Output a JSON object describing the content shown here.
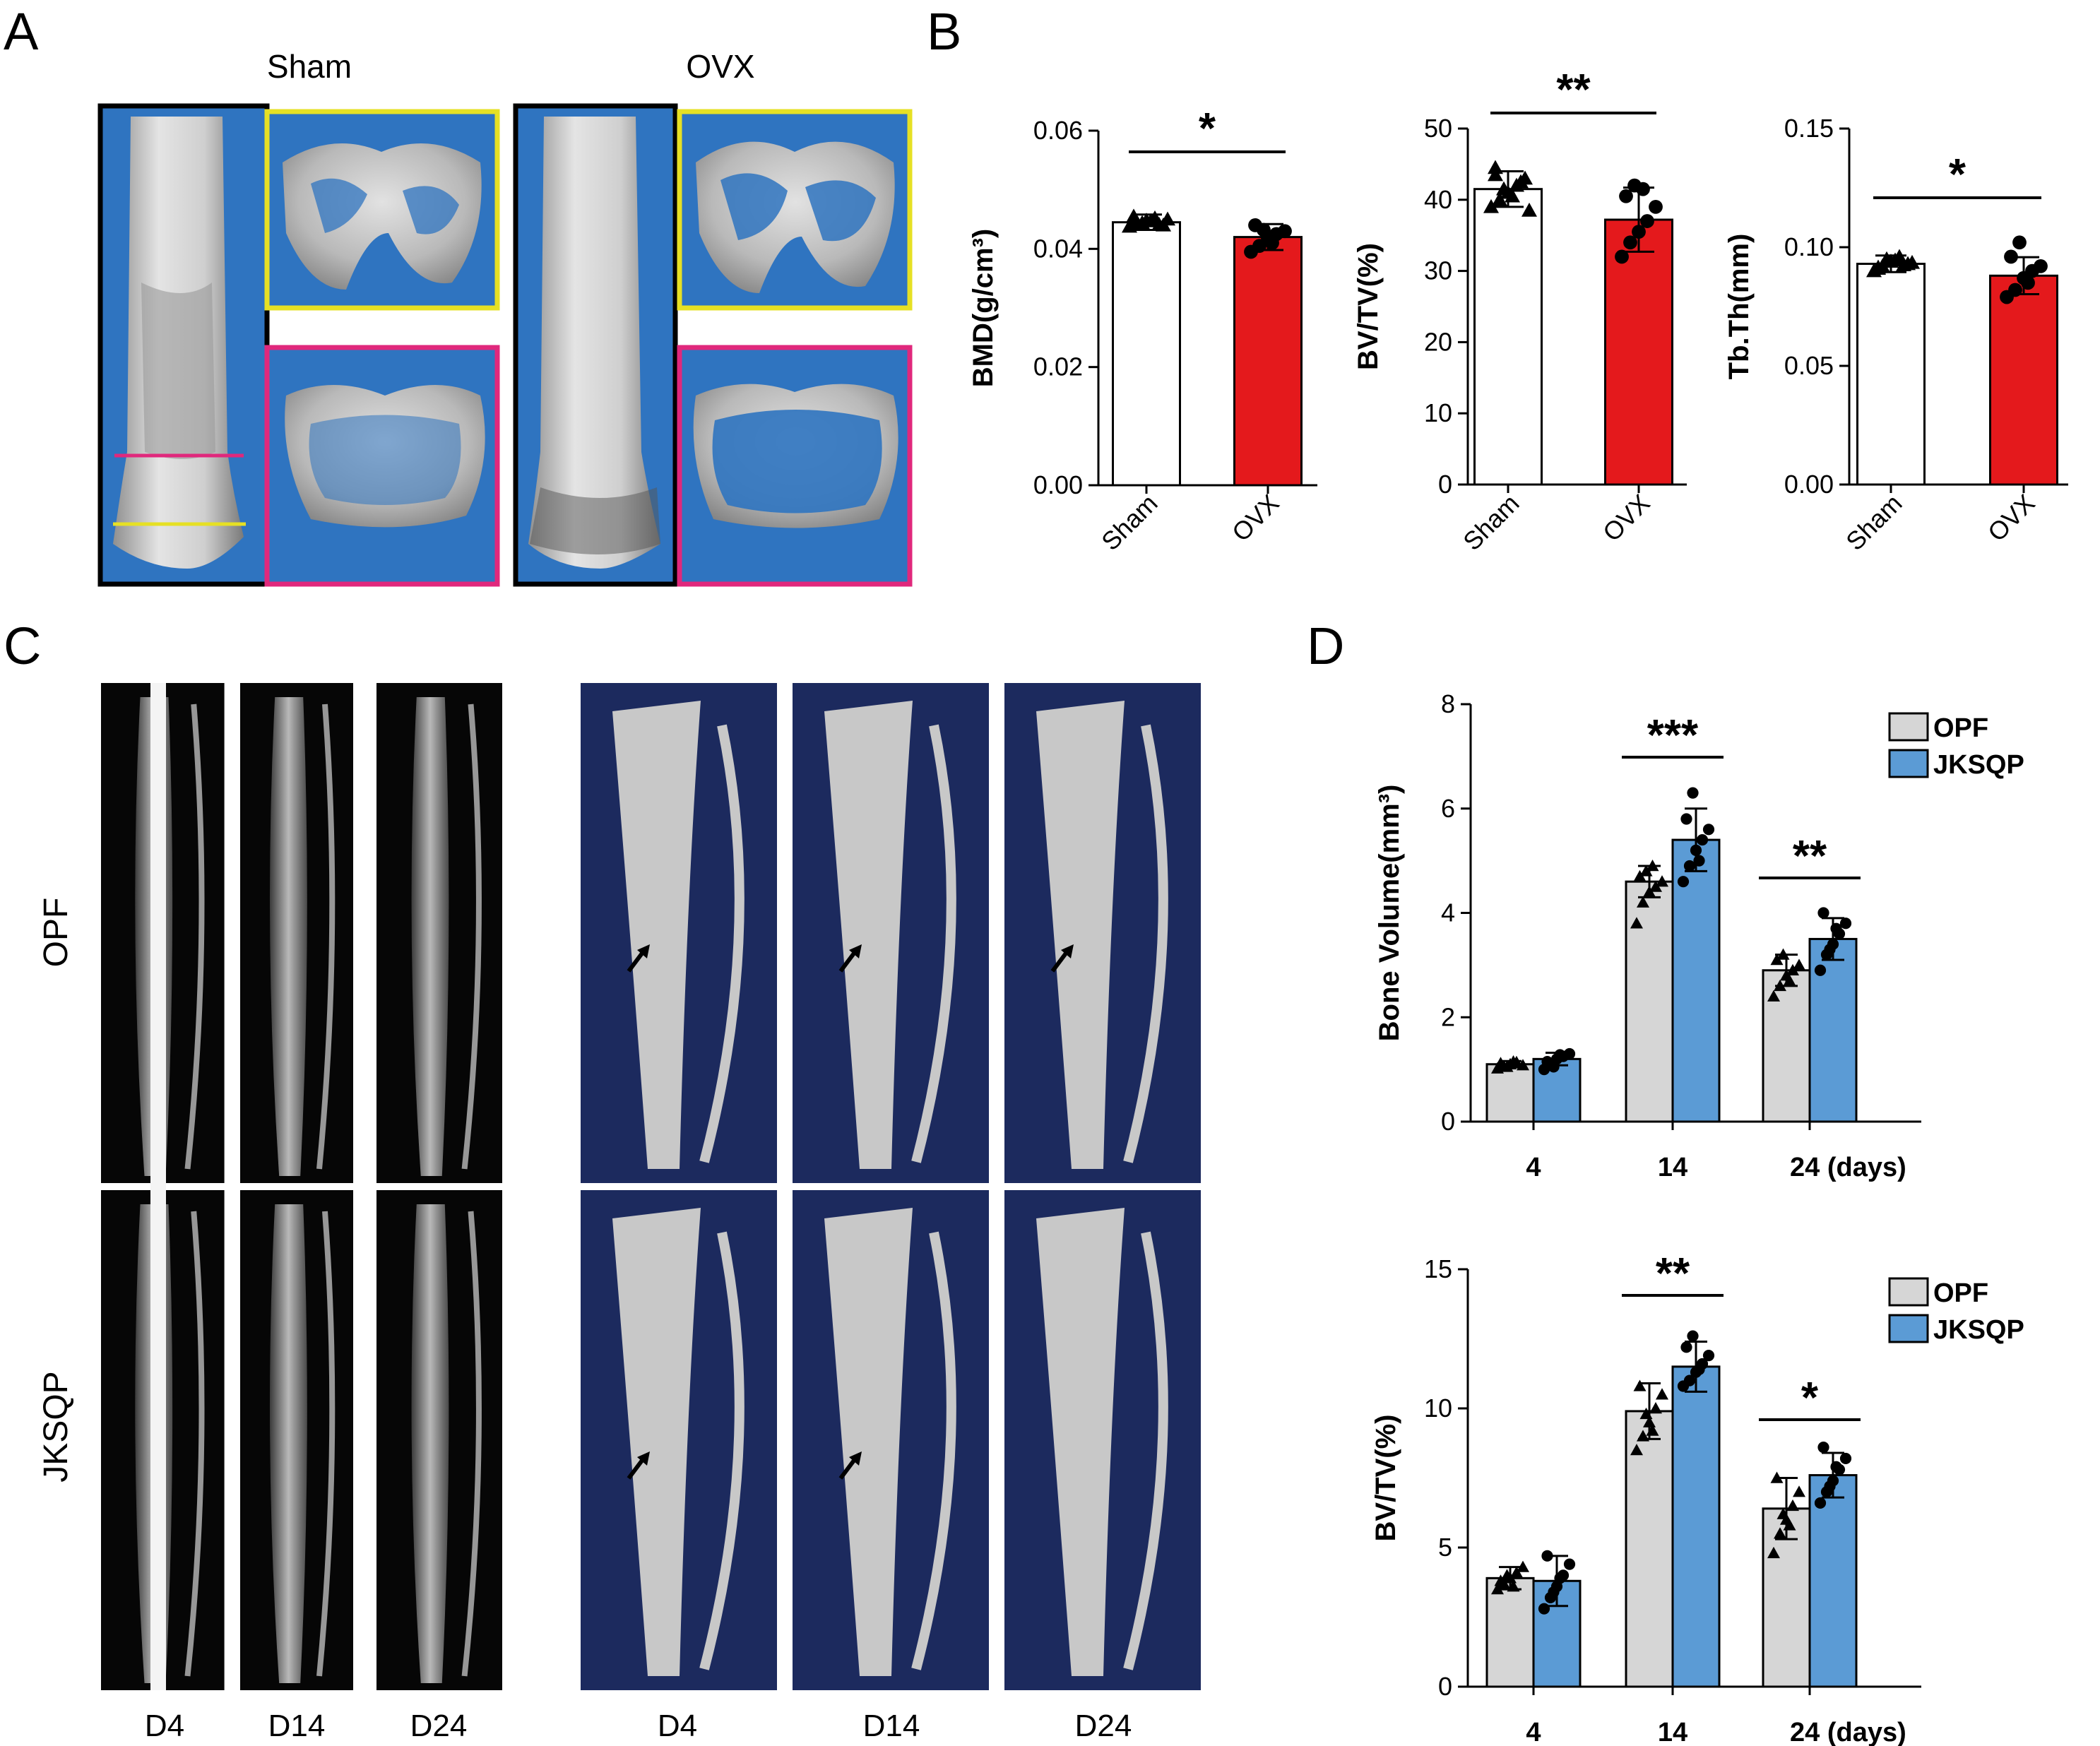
{
  "panels": {
    "A": {
      "letter": "A",
      "headers": [
        "Sham",
        "OVX"
      ]
    },
    "B": {
      "letter": "B"
    },
    "C": {
      "letter": "C",
      "row_labels": [
        "OPF",
        "JKSQP"
      ],
      "day_labels_left": [
        "D4",
        "D14",
        "D24"
      ],
      "day_labels_right": [
        "D4",
        "D14",
        "D24"
      ]
    },
    "D": {
      "letter": "D"
    }
  },
  "colors": {
    "sham_bar": "#ffffff",
    "ovx_bar": "#e4191c",
    "opf_bar": "#d6d6d6",
    "jksqp_bar": "#5b9bd5",
    "ct_background": "#2f74c0",
    "ct_frame_black": "#000000",
    "ct_frame_yellow": "#e6e024",
    "ct_frame_magenta": "#e0287c",
    "xray_background": "#060606",
    "render_background": "#1c2a5e",
    "bone": "#c8c8c8"
  },
  "chart_data": [
    {
      "id": "bmd",
      "type": "bar",
      "categories": [
        "Sham",
        "OVX"
      ],
      "values": [
        0.0445,
        0.042
      ],
      "errors": [
        0.0013,
        0.0022
      ],
      "points": [
        [
          0.0438,
          0.0442,
          0.0448,
          0.0452,
          0.044,
          0.0455,
          0.0444,
          0.0447,
          0.0441,
          0.045,
          0.0446
        ],
        [
          0.0395,
          0.0405,
          0.0418,
          0.0425,
          0.043,
          0.044,
          0.0432,
          0.041
        ]
      ],
      "markers": [
        "triangle",
        "circle"
      ],
      "ylabel": "BMD(g/cm³)",
      "ylim": [
        0,
        0.06
      ],
      "yticks": [
        "0.00",
        "0.02",
        "0.04",
        "0.06"
      ],
      "significance": "*"
    },
    {
      "id": "bvtv_a",
      "type": "bar",
      "categories": [
        "Sham",
        "OVX"
      ],
      "values": [
        41.5,
        37.2
      ],
      "errors": [
        2.5,
        4.5
      ],
      "points": [
        [
          39.0,
          40.0,
          41.0,
          42.0,
          43.0,
          44.5,
          41.5,
          40.5,
          42.5,
          38.5,
          43.5
        ],
        [
          32.0,
          34.0,
          35.5,
          37.0,
          39.0,
          40.5,
          42.0,
          41.5
        ]
      ],
      "markers": [
        "triangle",
        "circle"
      ],
      "ylabel": "BV/TV(%)",
      "ylim": [
        0,
        50
      ],
      "yticks": [
        "0",
        "10",
        "20",
        "30",
        "40",
        "50"
      ],
      "significance": "**"
    },
    {
      "id": "tbth",
      "type": "bar",
      "categories": [
        "Sham",
        "OVX"
      ],
      "values": [
        0.093,
        0.088
      ],
      "errors": [
        0.0035,
        0.0078
      ],
      "points": [
        [
          0.09,
          0.092,
          0.094,
          0.096,
          0.093,
          0.091,
          0.095,
          0.0945,
          0.0925,
          0.0935,
          0.0915
        ],
        [
          0.079,
          0.082,
          0.087,
          0.09,
          0.092,
          0.096,
          0.102,
          0.085
        ]
      ],
      "markers": [
        "triangle",
        "circle"
      ],
      "ylabel": "Tb.Th(mm)",
      "ylim": [
        0,
        0.15
      ],
      "yticks": [
        "0.00",
        "0.05",
        "0.10",
        "0.15"
      ],
      "significance": "*"
    },
    {
      "id": "bone_volume",
      "type": "bar",
      "categories": [
        "4",
        "14",
        "24 (days)"
      ],
      "series": [
        {
          "name": "OPF",
          "values": [
            1.1,
            4.6,
            2.9
          ],
          "errors": [
            0.06,
            0.3,
            0.3
          ],
          "points": [
            [
              1.02,
              1.06,
              1.1,
              1.14,
              1.08,
              1.12,
              1.05,
              1.15
            ],
            [
              3.8,
              4.2,
              4.4,
              4.5,
              4.6,
              4.7,
              4.8,
              4.9
            ],
            [
              2.4,
              2.6,
              2.8,
              2.9,
              3.0,
              3.1,
              3.2,
              2.7
            ]
          ],
          "marker": "triangle"
        },
        {
          "name": "JKSQP",
          "values": [
            1.2,
            5.4,
            3.5
          ],
          "errors": [
            0.12,
            0.6,
            0.4
          ],
          "points": [
            [
              1.0,
              1.1,
              1.2,
              1.25,
              1.3,
              1.15,
              1.05,
              1.28
            ],
            [
              4.6,
              4.9,
              5.2,
              5.4,
              5.6,
              5.8,
              6.3,
              5.0
            ],
            [
              2.9,
              3.2,
              3.4,
              3.6,
              3.8,
              4.0,
              3.3,
              3.7
            ]
          ],
          "marker": "circle"
        }
      ],
      "ylabel": "Bone Volume(mm³)",
      "ylim": [
        0,
        8
      ],
      "yticks": [
        "0",
        "2",
        "4",
        "6",
        "8"
      ],
      "legend": "top-right",
      "significance": [
        {
          "group": 1,
          "label": "***"
        },
        {
          "group": 2,
          "label": "**"
        }
      ]
    },
    {
      "id": "bvtv_d",
      "type": "bar",
      "categories": [
        "4",
        "14",
        "24 (days)"
      ],
      "series": [
        {
          "name": "OPF",
          "values": [
            3.9,
            9.9,
            6.4
          ],
          "errors": [
            0.4,
            1.0,
            1.1
          ],
          "points": [
            [
              3.5,
              3.7,
              3.9,
              4.1,
              4.3,
              3.8,
              4.0,
              3.6
            ],
            [
              8.5,
              9.0,
              9.5,
              10.0,
              10.5,
              10.8,
              9.8,
              9.2
            ],
            [
              4.8,
              5.5,
              6.0,
              6.5,
              7.0,
              7.5,
              6.2,
              5.8
            ]
          ],
          "marker": "triangle"
        },
        {
          "name": "JKSQP",
          "values": [
            3.8,
            11.5,
            7.6
          ],
          "errors": [
            0.9,
            0.9,
            0.8
          ],
          "points": [
            [
              2.8,
              3.2,
              3.6,
              4.0,
              4.4,
              4.7,
              3.4,
              3.9
            ],
            [
              10.8,
              11.0,
              11.3,
              11.6,
              11.9,
              12.2,
              12.6,
              11.4
            ],
            [
              6.6,
              7.0,
              7.4,
              7.8,
              8.2,
              8.6,
              7.2,
              7.9
            ]
          ],
          "marker": "circle"
        }
      ],
      "ylabel": "BV/TV(%)",
      "ylim": [
        0,
        15
      ],
      "yticks": [
        "0",
        "5",
        "10",
        "15"
      ],
      "legend": "top-right",
      "significance": [
        {
          "group": 1,
          "label": "**"
        },
        {
          "group": 2,
          "label": "*"
        }
      ]
    }
  ]
}
